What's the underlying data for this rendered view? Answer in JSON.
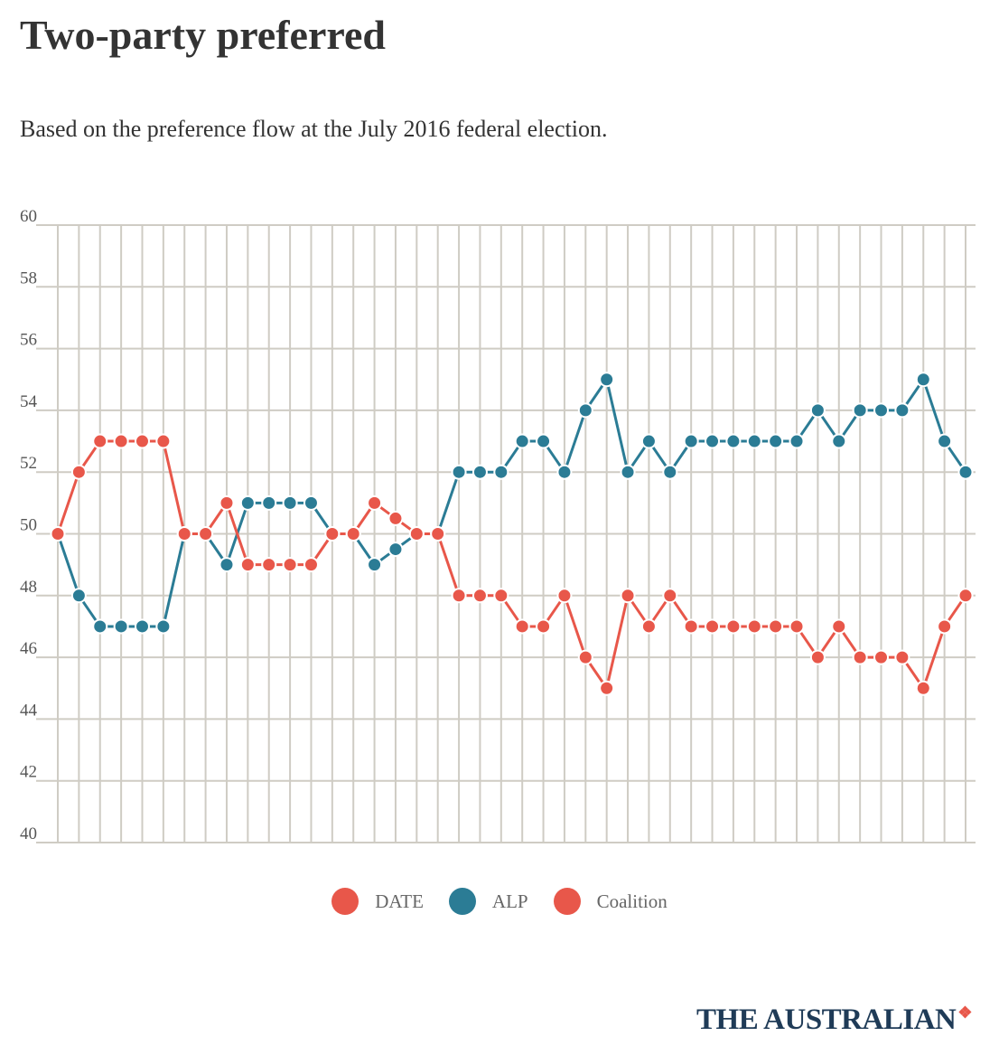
{
  "title": "Two-party preferred",
  "subtitle": "Based on the preference flow at the July 2016 federal election.",
  "brand": "THE AUSTRALIAN",
  "colors": {
    "alp": "#2b7c95",
    "coalition": "#e8574a",
    "date": "#e8574a",
    "grid": "#cfccc4"
  },
  "legend": [
    {
      "label": "DATE",
      "color": "#e8574a"
    },
    {
      "label": "ALP",
      "color": "#2b7c95"
    },
    {
      "label": "Coalition",
      "color": "#e8574a"
    }
  ],
  "chart_data": {
    "type": "line",
    "title": "Two-party preferred",
    "ylim": [
      40,
      60
    ],
    "yticks": [
      60,
      58,
      56,
      54,
      52,
      50,
      48,
      46,
      44,
      42,
      40
    ],
    "legend_position": "bottom-center",
    "grid": true,
    "series": [
      {
        "name": "ALP",
        "color": "#2b7c95",
        "values": [
          50,
          48,
          47,
          47,
          47,
          47,
          50,
          50,
          49,
          51,
          51,
          51,
          51,
          50,
          50,
          49,
          49.5,
          50,
          50,
          52,
          52,
          52,
          53,
          53,
          52,
          54,
          55,
          52,
          53,
          52,
          53,
          53,
          53,
          53,
          53,
          53,
          54,
          53,
          54,
          54,
          54,
          55,
          53,
          52
        ]
      },
      {
        "name": "Coalition",
        "color": "#e8574a",
        "values": [
          50,
          52,
          53,
          53,
          53,
          53,
          50,
          50,
          51,
          49,
          49,
          49,
          49,
          50,
          50,
          51,
          50.5,
          50,
          50,
          48,
          48,
          48,
          47,
          47,
          48,
          46,
          45,
          48,
          47,
          48,
          47,
          47,
          47,
          47,
          47,
          47,
          46,
          47,
          46,
          46,
          46,
          45,
          47,
          48
        ]
      }
    ]
  }
}
